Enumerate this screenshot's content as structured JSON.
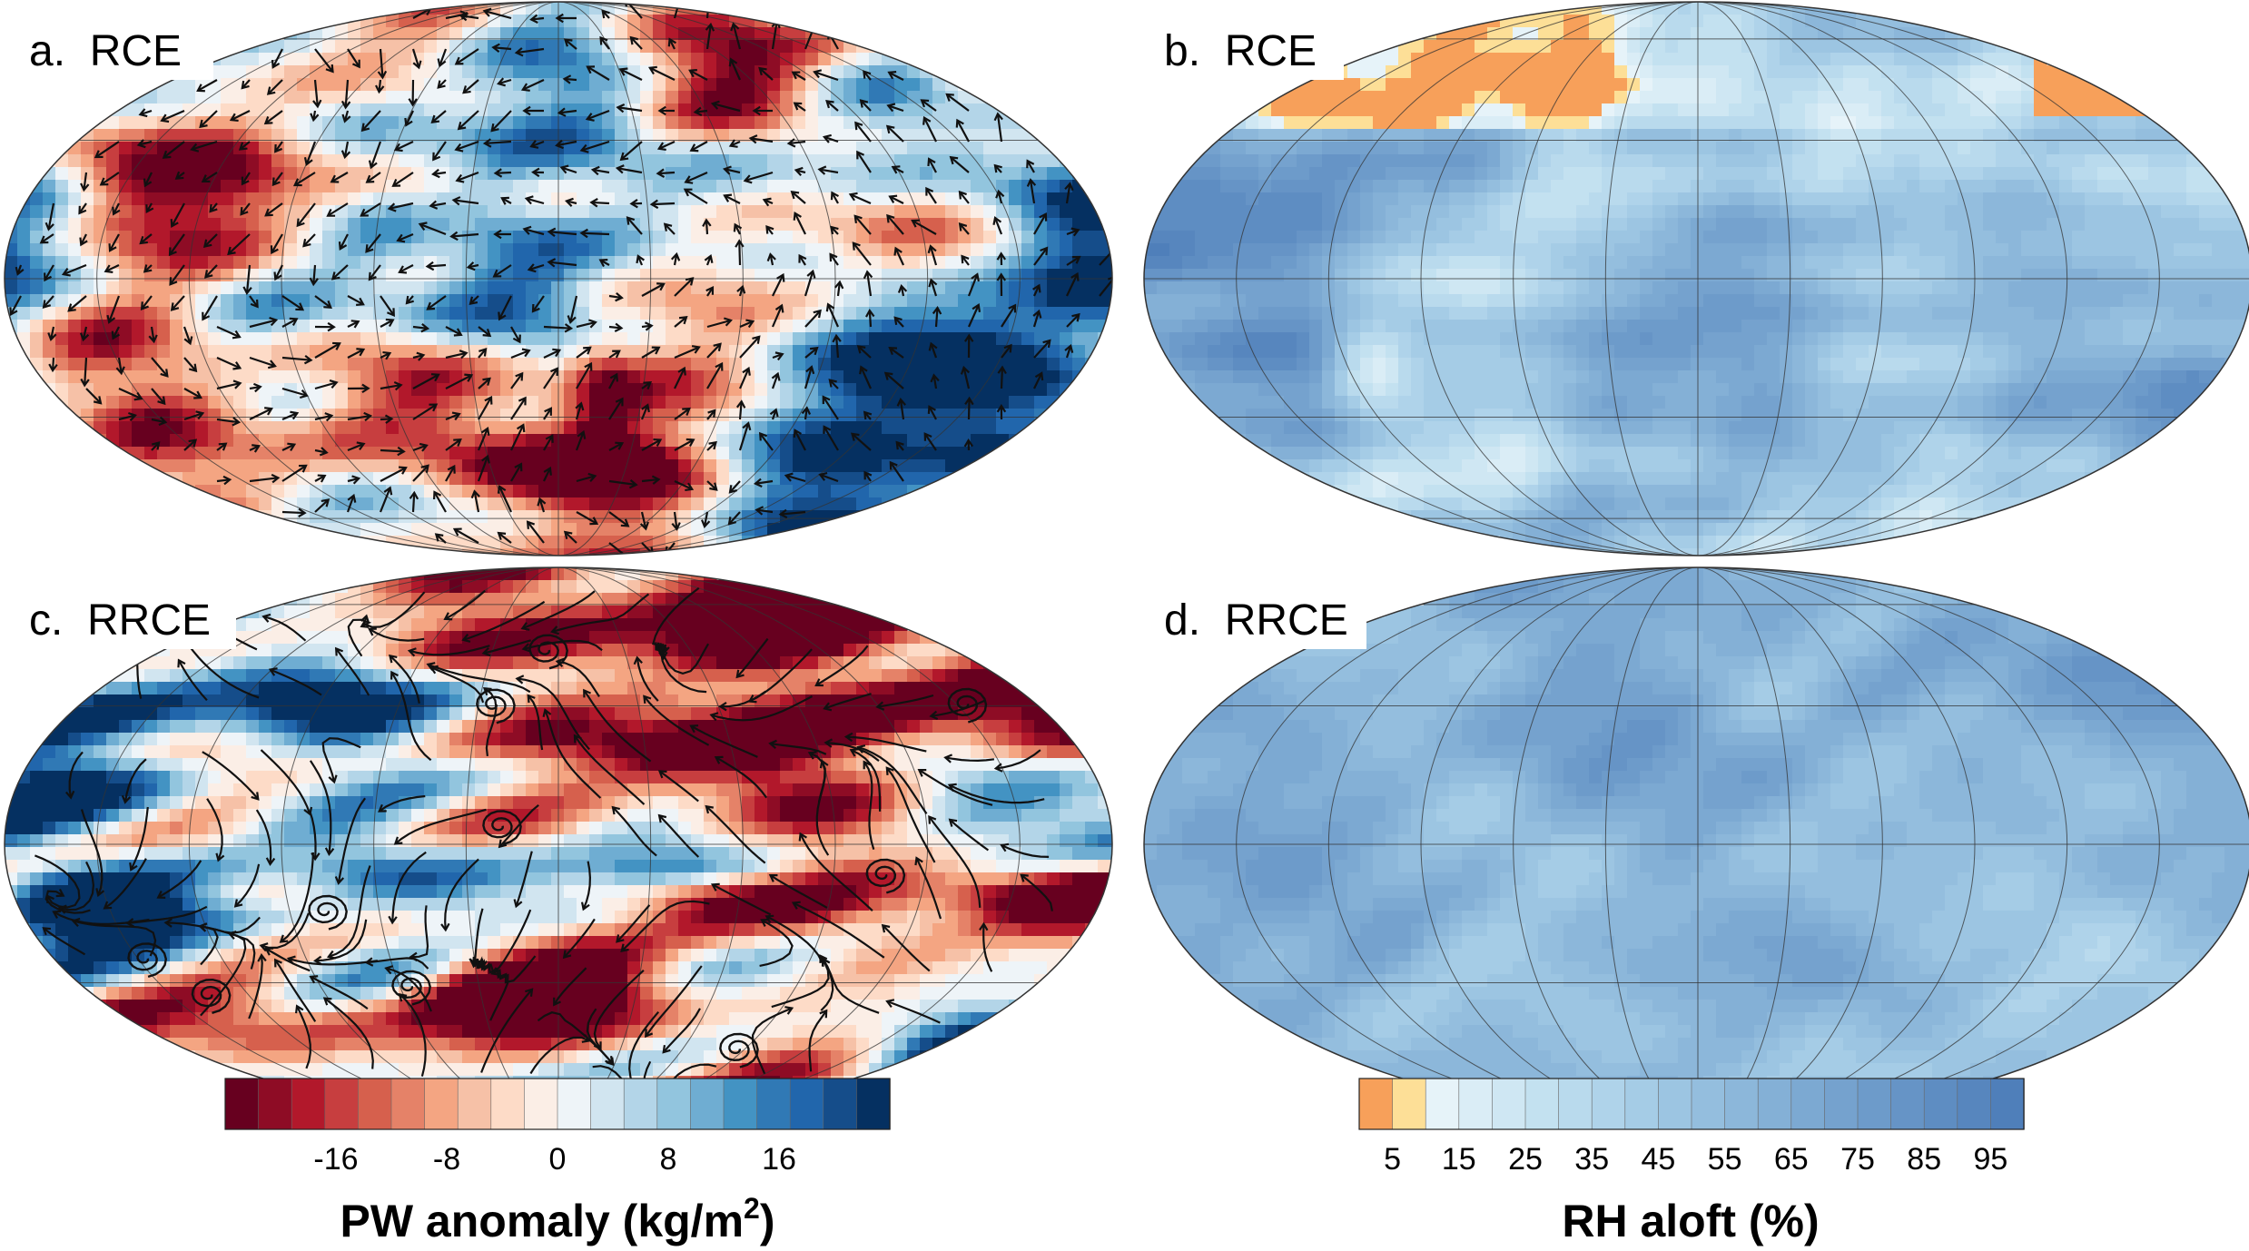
{
  "panels": [
    {
      "id": "a",
      "label": "a.  RCE",
      "field": "pw",
      "flow": "arrows",
      "seed": 11
    },
    {
      "id": "b",
      "label": "b.  RCE",
      "field": "rh",
      "flow": "none",
      "seed": 23
    },
    {
      "id": "c",
      "label": "c.  RRCE",
      "field": "pw",
      "flow": "streamlines",
      "seed": 37
    },
    {
      "id": "d",
      "label": "d.  RRCE",
      "field": "rh",
      "flow": "none",
      "seed": 53
    }
  ],
  "colorbars": {
    "pw": {
      "title": "PW anomaly (kg/m",
      "title_sup": "2",
      "title_end": ")",
      "ticks": [
        "-16",
        "-8",
        "0",
        "8",
        "16"
      ],
      "tick_values": [
        -16,
        -8,
        0,
        8,
        16
      ],
      "range": [
        -24,
        24
      ],
      "colors": [
        "#67001f",
        "#8e0c25",
        "#b2182b",
        "#c73e3f",
        "#d6604d",
        "#e58268",
        "#f4a582",
        "#f6c1a7",
        "#fddbc7",
        "#fbeee6",
        "#eef4f8",
        "#d1e5f0",
        "#b3d5e8",
        "#92c5de",
        "#6fadd2",
        "#4393c3",
        "#3079b5",
        "#2166ac",
        "#154d8a",
        "#053061"
      ]
    },
    "rh": {
      "title": "RH aloft (%)",
      "ticks": [
        "5",
        "15",
        "25",
        "35",
        "45",
        "55",
        "65",
        "75",
        "85",
        "95"
      ],
      "tick_values": [
        5,
        15,
        25,
        35,
        45,
        55,
        65,
        75,
        85,
        95
      ],
      "range": [
        0,
        100
      ],
      "colors": [
        "#f7a05a",
        "#fddf97",
        "#e6f3f9",
        "#daedf6",
        "#cfe7f3",
        "#c3e1f0",
        "#b9daed",
        "#afd3ea",
        "#a5cce6",
        "#9cc5e2",
        "#94bede",
        "#8cb7da",
        "#84b0d6",
        "#7ca9d2",
        "#75a2ce",
        "#6d9bca",
        "#6694c6",
        "#5e8dc2",
        "#5786be",
        "#4f7fba"
      ]
    }
  }
}
